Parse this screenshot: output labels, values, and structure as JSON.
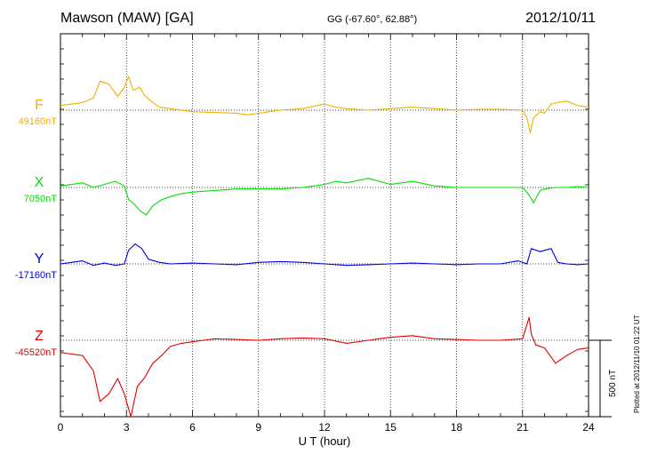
{
  "header": {
    "station": "Mawson (MAW)  [GA]",
    "coords": "GG (-67.60°,  62.88°)",
    "date": "2012/10/11"
  },
  "footer": {
    "plotted": "Plotted at 2012/11/10 01:22 UT",
    "scale": "500 nT"
  },
  "chart_data": {
    "type": "line",
    "xlabel": "U T (hour)",
    "xlim": [
      0,
      24
    ],
    "xticks": [
      "0",
      "3",
      "6",
      "9",
      "12",
      "15",
      "18",
      "21",
      "24"
    ],
    "scale_bar_nT": 500,
    "series": [
      {
        "name": "F",
        "baseline": "49160nT",
        "color": "#f0b000",
        "x": [
          0,
          0.5,
          1.0,
          1.5,
          1.8,
          2.2,
          2.6,
          2.9,
          3.1,
          3.3,
          3.6,
          3.8,
          4.1,
          4.5,
          5.0,
          6.0,
          7.0,
          8.0,
          8.5,
          9.0,
          10.0,
          11.0,
          12.0,
          12.5,
          13.0,
          14.0,
          15.0,
          16.0,
          17.0,
          18.0,
          19.0,
          20.0,
          21.0,
          21.2,
          21.35,
          21.5,
          21.8,
          22.0,
          22.3,
          22.6,
          23.0,
          23.5,
          24.0
        ],
        "values": [
          30,
          40,
          50,
          80,
          190,
          170,
          90,
          150,
          220,
          130,
          150,
          100,
          60,
          20,
          10,
          -10,
          -15,
          -20,
          -30,
          -20,
          0,
          10,
          40,
          20,
          10,
          0,
          10,
          20,
          10,
          0,
          5,
          5,
          0,
          -50,
          -150,
          -50,
          -10,
          -20,
          40,
          50,
          60,
          30,
          20
        ]
      },
      {
        "name": "X",
        "baseline": "7050nT",
        "color": "#00e000",
        "x": [
          0,
          0.5,
          1.0,
          1.5,
          2.0,
          2.5,
          2.9,
          3.1,
          3.3,
          3.6,
          3.9,
          4.2,
          4.6,
          5.0,
          5.5,
          6.0,
          7.0,
          8.0,
          9.0,
          10.0,
          11.0,
          12.0,
          12.5,
          13.0,
          14.0,
          15.0,
          16.0,
          17.0,
          18.0,
          19.0,
          20.0,
          21.0,
          21.3,
          21.5,
          21.8,
          22.0,
          22.5,
          23.0,
          23.5,
          24.0
        ],
        "values": [
          10,
          20,
          30,
          0,
          20,
          40,
          10,
          -80,
          -100,
          -150,
          -180,
          -120,
          -80,
          -60,
          -40,
          -30,
          -20,
          -10,
          -10,
          -10,
          0,
          20,
          40,
          30,
          60,
          20,
          40,
          10,
          0,
          0,
          0,
          0,
          -50,
          -100,
          -20,
          -10,
          0,
          0,
          5,
          0
        ]
      },
      {
        "name": "Y",
        "baseline": "-17160nT",
        "color": "#0000e0",
        "x": [
          0,
          0.5,
          1.0,
          1.5,
          2.0,
          2.5,
          2.9,
          3.1,
          3.4,
          3.7,
          4.0,
          4.5,
          5.0,
          6.0,
          7.0,
          8.0,
          9.0,
          10.0,
          11.0,
          12.0,
          13.0,
          14.0,
          15.0,
          16.0,
          17.0,
          18.0,
          19.0,
          20.0,
          20.8,
          21.2,
          21.4,
          21.8,
          22.3,
          22.6,
          23.0,
          23.5,
          24.0
        ],
        "values": [
          0,
          10,
          20,
          -10,
          5,
          -10,
          0,
          90,
          130,
          100,
          30,
          10,
          0,
          5,
          0,
          -5,
          10,
          15,
          10,
          0,
          -10,
          -5,
          0,
          5,
          0,
          -5,
          0,
          0,
          20,
          0,
          100,
          80,
          100,
          10,
          0,
          -5,
          0
        ]
      },
      {
        "name": "Z",
        "baseline": "-45520nT",
        "color": "#e00000",
        "x": [
          0,
          0.5,
          1.0,
          1.5,
          1.8,
          2.2,
          2.6,
          2.9,
          3.2,
          3.5,
          3.8,
          4.2,
          4.6,
          5.0,
          5.5,
          6.0,
          6.5,
          7.0,
          8.0,
          9.0,
          10.0,
          11.0,
          12.0,
          13.0,
          14.0,
          15.0,
          16.0,
          17.0,
          18.0,
          19.0,
          20.0,
          21.0,
          21.3,
          21.4,
          21.6,
          22.0,
          22.5,
          23.0,
          23.5,
          24.0
        ],
        "values": [
          -80,
          -90,
          -100,
          -200,
          -400,
          -350,
          -250,
          -350,
          -500,
          -300,
          -250,
          -150,
          -100,
          -40,
          -20,
          -10,
          0,
          10,
          5,
          0,
          10,
          15,
          10,
          -20,
          0,
          20,
          30,
          10,
          5,
          0,
          0,
          10,
          150,
          40,
          -30,
          -50,
          -150,
          -100,
          -60,
          -50
        ]
      }
    ]
  }
}
